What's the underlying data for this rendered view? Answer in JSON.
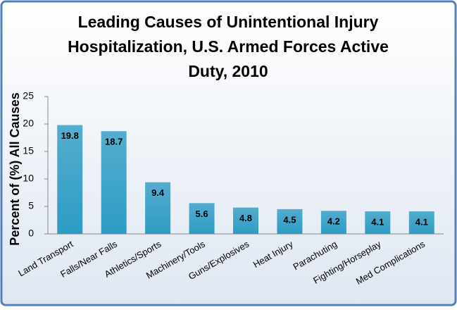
{
  "chart_data": {
    "type": "bar",
    "title": [
      "Leading Causes of Unintentional Injury",
      "Hospitalization, U.S. Armed Forces Active",
      "Duty, 2010"
    ],
    "y_label": "Percent of (%) All Causes",
    "categories": [
      "Land Transport",
      "Falls/Near Falls",
      "Athletics/Sports",
      "Machinery/Tools",
      "Guns/Explosives",
      "Heat Injury",
      "Parachuting",
      "Fighting/Horseplay",
      "Med Complications"
    ],
    "values": [
      19.8,
      18.7,
      9.4,
      5.6,
      4.8,
      4.5,
      4.2,
      4.1,
      4.1
    ],
    "color": "#2e9cc4",
    "ylim": [
      0,
      25
    ],
    "yticks": [
      0,
      5,
      10,
      15,
      20,
      25
    ],
    "grid": false
  }
}
